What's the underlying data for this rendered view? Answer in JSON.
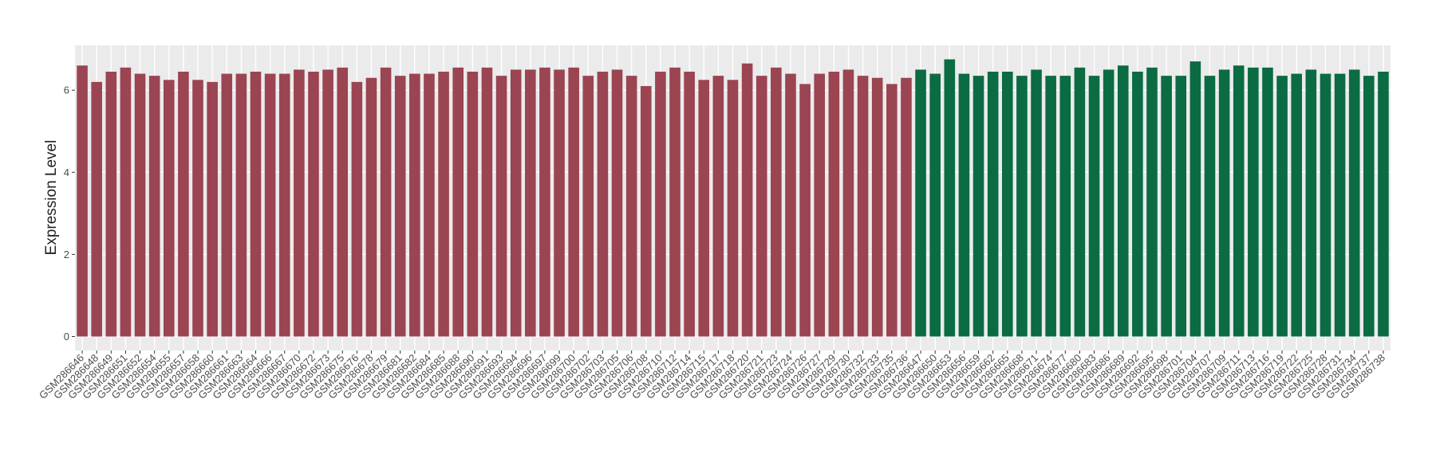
{
  "chart_data": {
    "type": "bar",
    "y_label": "Expression Level",
    "categories": [
      "GSM286646",
      "GSM286648",
      "GSM286649",
      "GSM286651",
      "GSM286652",
      "GSM286654",
      "GSM286655",
      "GSM286657",
      "GSM286658",
      "GSM286660",
      "GSM286661",
      "GSM286663",
      "GSM286664",
      "GSM286666",
      "GSM286667",
      "GSM286670",
      "GSM286672",
      "GSM286673",
      "GSM286675",
      "GSM286676",
      "GSM286678",
      "GSM286679",
      "GSM286681",
      "GSM286682",
      "GSM286684",
      "GSM286685",
      "GSM286688",
      "GSM286690",
      "GSM286691",
      "GSM286693",
      "GSM286694",
      "GSM286696",
      "GSM286697",
      "GSM286699",
      "GSM286700",
      "GSM286702",
      "GSM286703",
      "GSM286705",
      "GSM286706",
      "GSM286708",
      "GSM286710",
      "GSM286712",
      "GSM286714",
      "GSM286715",
      "GSM286717",
      "GSM286718",
      "GSM286720",
      "GSM286721",
      "GSM286723",
      "GSM286724",
      "GSM286726",
      "GSM286727",
      "GSM286729",
      "GSM286730",
      "GSM286732",
      "GSM286733",
      "GSM286735",
      "GSM286736",
      "GSM286647",
      "GSM286650",
      "GSM286653",
      "GSM286656",
      "GSM286659",
      "GSM286662",
      "GSM286665",
      "GSM286668",
      "GSM286671",
      "GSM286674",
      "GSM286677",
      "GSM286680",
      "GSM286683",
      "GSM286686",
      "GSM286689",
      "GSM286692",
      "GSM286695",
      "GSM286698",
      "GSM286701",
      "GSM286704",
      "GSM286707",
      "GSM286709",
      "GSM286711",
      "GSM286713",
      "GSM286716",
      "GSM286719",
      "GSM286722",
      "GSM286725",
      "GSM286728",
      "GSM286731",
      "GSM286734",
      "GSM286737",
      "GSM286738"
    ],
    "values": [
      6.6,
      6.2,
      6.45,
      6.55,
      6.4,
      6.35,
      6.25,
      6.45,
      6.25,
      6.2,
      6.4,
      6.4,
      6.45,
      6.4,
      6.4,
      6.5,
      6.45,
      6.5,
      6.55,
      6.2,
      6.3,
      6.55,
      6.35,
      6.4,
      6.4,
      6.45,
      6.55,
      6.45,
      6.55,
      6.35,
      6.5,
      6.5,
      6.55,
      6.5,
      6.55,
      6.35,
      6.45,
      6.5,
      6.35,
      6.1,
      6.45,
      6.55,
      6.45,
      6.25,
      6.35,
      6.25,
      6.65,
      6.35,
      6.55,
      6.4,
      6.15,
      6.4,
      6.45,
      6.5,
      6.35,
      6.3,
      6.15,
      6.3,
      6.5,
      6.4,
      6.75,
      6.4,
      6.35,
      6.45,
      6.45,
      6.35,
      6.5,
      6.35,
      6.35,
      6.55,
      6.35,
      6.5,
      6.6,
      6.45,
      6.55,
      6.35,
      6.35,
      6.7,
      6.35,
      6.5,
      6.6,
      6.55,
      6.55,
      6.35,
      6.4,
      6.5,
      6.4,
      6.4,
      6.5,
      6.35,
      6.45
    ],
    "group_colors": {
      "first": "#9b4452",
      "second": "#0b6b43"
    },
    "group_sizes": [
      58,
      33
    ],
    "ylim": [
      -0.34,
      7.09
    ],
    "yticks": [
      0,
      2,
      4,
      6
    ],
    "grid": true
  }
}
